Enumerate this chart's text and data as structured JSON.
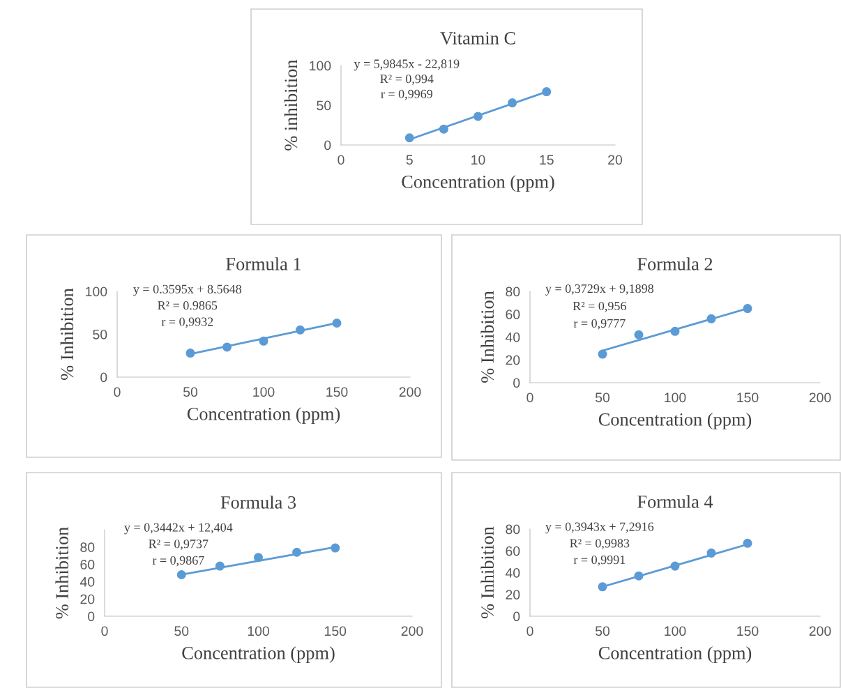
{
  "chart_data": [
    {
      "type": "scatter",
      "title": "Vitamin C",
      "xlabel": "Concentration (ppm)",
      "ylabel": "% inhibition",
      "xlim": [
        0,
        20
      ],
      "xticks": [
        0,
        5,
        10,
        15,
        20
      ],
      "ylim": [
        0,
        100
      ],
      "yticks": [
        0,
        50,
        100
      ],
      "grid": false,
      "annotations": [
        "y = 5,9845x - 22,819",
        "R² = 0,994",
        "r = 0,9969"
      ],
      "series": [
        {
          "color": "#5b9bd5",
          "marker": "circle",
          "x": [
            5,
            7.5,
            10,
            12.5,
            15
          ],
          "values": [
            9,
            20,
            36,
            53,
            67
          ]
        },
        {
          "type": "line",
          "color": "#5b9bd5",
          "x": [
            5,
            15
          ],
          "values": [
            7,
            67
          ]
        }
      ]
    },
    {
      "type": "scatter",
      "title": "Formula 1",
      "xlabel": "Concentration (ppm)",
      "ylabel": "% Inhibition",
      "xlim": [
        0,
        200
      ],
      "xticks": [
        0,
        50,
        100,
        150,
        200
      ],
      "ylim": [
        0,
        100
      ],
      "yticks": [
        0,
        50,
        100
      ],
      "grid": false,
      "annotations": [
        "y = 0.3595x + 8.5648",
        "R² = 0.9865",
        "r = 0,9932"
      ],
      "series": [
        {
          "color": "#5b9bd5",
          "marker": "circle",
          "x": [
            50,
            75,
            100,
            125,
            150
          ],
          "values": [
            28,
            35,
            42,
            55,
            63
          ]
        },
        {
          "type": "line",
          "color": "#5b9bd5",
          "x": [
            50,
            150
          ],
          "values": [
            27,
            63
          ]
        }
      ]
    },
    {
      "type": "scatter",
      "title": "Formula 2",
      "xlabel": "Concentration (ppm)",
      "ylabel": "% Inhibition",
      "xlim": [
        0,
        200
      ],
      "xticks": [
        0,
        50,
        100,
        150,
        200
      ],
      "ylim": [
        0,
        80
      ],
      "yticks": [
        0,
        20,
        40,
        60,
        80
      ],
      "grid": false,
      "annotations": [
        "y = 0,3729x + 9,1898",
        "R² = 0,956",
        "r = 0,9777"
      ],
      "series": [
        {
          "color": "#5b9bd5",
          "marker": "circle",
          "x": [
            50,
            75,
            100,
            125,
            150
          ],
          "values": [
            25,
            42,
            45,
            56,
            65
          ]
        },
        {
          "type": "line",
          "color": "#5b9bd5",
          "x": [
            50,
            150
          ],
          "values": [
            28,
            65
          ]
        }
      ]
    },
    {
      "type": "scatter",
      "title": "Formula 3",
      "xlabel": "Concentration (ppm)",
      "ylabel": "% Inhibition",
      "xlim": [
        0,
        200
      ],
      "xticks": [
        0,
        50,
        100,
        150,
        200
      ],
      "ylim": [
        0,
        100
      ],
      "yticks": [
        0,
        20,
        40,
        60,
        80
      ],
      "grid": false,
      "annotations": [
        "y = 0,3442x + 12,404",
        "R² = 0,9737",
        "r = 0,9867"
      ],
      "series": [
        {
          "color": "#5b9bd5",
          "marker": "circle",
          "x": [
            50,
            75,
            100,
            125,
            150
          ],
          "values": [
            48,
            58,
            68,
            74,
            79
          ]
        },
        {
          "type": "line",
          "color": "#5b9bd5",
          "x": [
            50,
            150
          ],
          "values": [
            48,
            80
          ]
        }
      ]
    },
    {
      "type": "scatter",
      "title": "Formula 4",
      "xlabel": "Concentration (ppm)",
      "ylabel": "% Inhibition",
      "xlim": [
        0,
        200
      ],
      "xticks": [
        0,
        50,
        100,
        150,
        200
      ],
      "ylim": [
        0,
        80
      ],
      "yticks": [
        0,
        20,
        40,
        60,
        80
      ],
      "grid": false,
      "annotations": [
        "y = 0,3943x + 7,2916",
        "R² = 0,9983",
        "r = 0,9991"
      ],
      "series": [
        {
          "color": "#5b9bd5",
          "marker": "circle",
          "x": [
            50,
            75,
            100,
            125,
            150
          ],
          "values": [
            27,
            37,
            46,
            58,
            67
          ]
        },
        {
          "type": "line",
          "color": "#5b9bd5",
          "x": [
            50,
            150
          ],
          "values": [
            27,
            66
          ]
        }
      ]
    }
  ]
}
